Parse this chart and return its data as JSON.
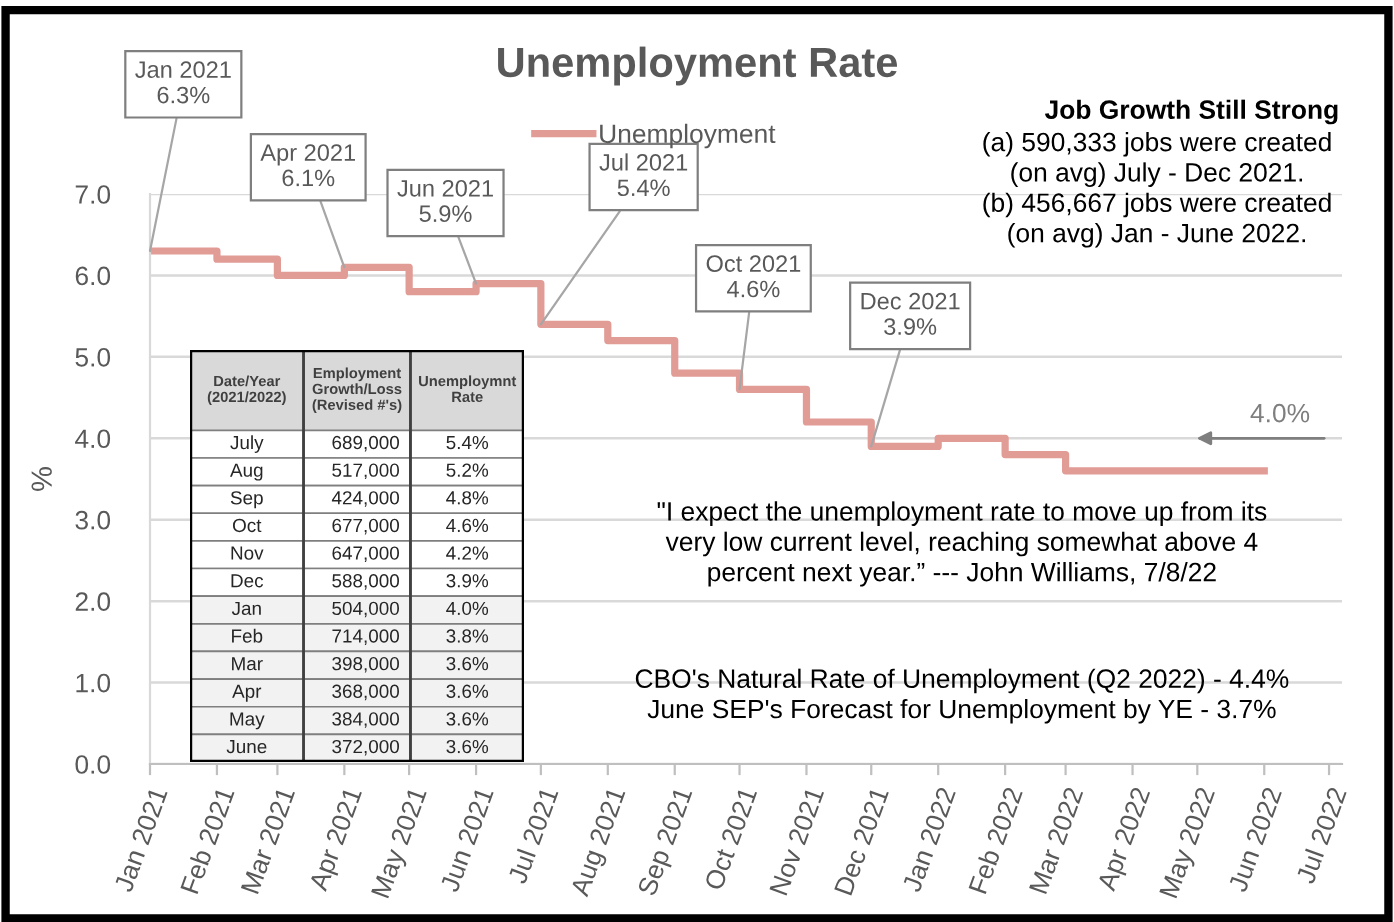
{
  "chart_data": [
    {
      "type": "step",
      "title": "Unemployment Rate",
      "ylabel": "%",
      "x": [
        "2021-01",
        "2021-02",
        "2021-03",
        "2021-04",
        "2021-05",
        "2021-06",
        "2021-07",
        "2021-08",
        "2021-09",
        "2021-10",
        "2021-11",
        "2021-12",
        "2022-01",
        "2022-02",
        "2022-03",
        "2022-04",
        "2022-05",
        "2022-06"
      ],
      "series": [
        {
          "name": "Unemployment",
          "color": "#e29c96",
          "values": [
            6.3,
            6.2,
            6.0,
            6.1,
            5.8,
            5.9,
            5.4,
            5.2,
            4.8,
            4.6,
            4.2,
            3.9,
            4.0,
            3.8,
            3.6,
            3.6,
            3.6,
            3.6
          ]
        }
      ],
      "xlim": [
        "2021-01",
        "2022-07-07"
      ],
      "xticks": [
        {
          "value": "2021-01",
          "label": "Jan 2021"
        },
        {
          "value": "2021-02",
          "label": "Feb 2021"
        },
        {
          "value": "2021-03",
          "label": "Mar 2021"
        },
        {
          "value": "2021-04",
          "label": "Apr 2021"
        },
        {
          "value": "2021-05",
          "label": "May 2021"
        },
        {
          "value": "2021-06",
          "label": "Jun 2021"
        },
        {
          "value": "2021-07",
          "label": "Jul 2021"
        },
        {
          "value": "2021-08",
          "label": "Aug 2021"
        },
        {
          "value": "2021-09",
          "label": "Sep 2021"
        },
        {
          "value": "2021-10",
          "label": "Oct 2021"
        },
        {
          "value": "2021-11",
          "label": "Nov 2021"
        },
        {
          "value": "2021-12",
          "label": "Dec 2021"
        },
        {
          "value": "2022-01",
          "label": "Jan 2022"
        },
        {
          "value": "2022-02",
          "label": "Feb 2022"
        },
        {
          "value": "2022-03",
          "label": "Mar 2022"
        },
        {
          "value": "2022-04",
          "label": "Apr 2022"
        },
        {
          "value": "2022-05",
          "label": "May 2022"
        },
        {
          "value": "2022-06",
          "label": "Jun 2022"
        },
        {
          "value": "2022-07",
          "label": "Jul 2022"
        }
      ],
      "ylim": [
        0,
        7
      ],
      "yticks": [
        {
          "value": 0,
          "label": "0.0"
        },
        {
          "value": 1,
          "label": "1.0"
        },
        {
          "value": 2,
          "label": "2.0"
        },
        {
          "value": 3,
          "label": "3.0"
        },
        {
          "value": 4,
          "label": "4.0"
        },
        {
          "value": 5,
          "label": "5.0"
        },
        {
          "value": 6,
          "label": "6.0"
        },
        {
          "value": 7,
          "label": "7.0"
        }
      ],
      "grid": "y",
      "legend": "top",
      "marker": "none",
      "line_style": "solid",
      "annotations": [
        {
          "text": "Jan 2021\n6.3%",
          "x": "2021-01",
          "y": 6.3
        },
        {
          "text": "Apr 2021\n6.1%",
          "x": "2021-04",
          "y": 6.1
        },
        {
          "text": "Jun 2021\n5.9%",
          "x": "2021-06",
          "y": 5.9
        },
        {
          "text": "Jul 2021\n5.4%",
          "x": "2021-07",
          "y": 5.4
        },
        {
          "text": "Oct 2021\n4.6%",
          "x": "2021-10",
          "y": 4.6
        },
        {
          "text": "Dec 2021\n3.9%",
          "x": "2021-12",
          "y": 3.9
        },
        "4.0%",
        "Job Growth Still Strong",
        "(a) 590,333 jobs were created\n(on avg) July - Dec 2021.\n(b) 456,667 jobs were created\n(on avg) Jan - June 2022.",
        "\"I expect the unemployment rate to move up from its\nvery low current level, reaching somewhat above 4\npercent next year.” --- John Williams, 7/8/22",
        "CBO's Natural Rate of Unemployment (Q2 2022) - 4.4%\nJune SEP's Forecast for Unemployment by YE - 3.7%"
      ]
    },
    {
      "type": "other",
      "xlabel": "Date/Year\n(2021/2022)",
      "categories": [
        "July",
        "Aug",
        "Sep",
        "Oct",
        "Nov",
        "Dec",
        "Jan",
        "Feb",
        "Mar",
        "Apr",
        "May",
        "June"
      ],
      "series": [
        {
          "name": "Employment\nGrowth/Loss\n(Revised #'s)",
          "colors": [
            "#ffffff",
            "#ffffff",
            "#ffffff",
            "#ffffff",
            "#ffffff",
            "#ffffff",
            "#f2f2f2",
            "#f2f2f2",
            "#f2f2f2",
            "#f2f2f2",
            "#f2f2f2",
            "#f2f2f2"
          ],
          "values": [
            689000,
            517000,
            424000,
            677000,
            647000,
            588000,
            504000,
            714000,
            398000,
            368000,
            384000,
            372000
          ],
          "value_labels": [
            "689,000",
            "517,000",
            "424,000",
            "677,000",
            "647,000",
            "588,000",
            "504,000",
            "714,000",
            "398,000",
            "368,000",
            "384,000",
            "372,000"
          ]
        },
        {
          "name": "Unemploymnt\nRate",
          "colors": [
            "#ffffff",
            "#ffffff",
            "#ffffff",
            "#ffffff",
            "#ffffff",
            "#ffffff",
            "#f2f2f2",
            "#f2f2f2",
            "#f2f2f2",
            "#f2f2f2",
            "#f2f2f2",
            "#f2f2f2"
          ],
          "values": [
            5.4,
            5.2,
            4.8,
            4.6,
            4.2,
            3.9,
            4.0,
            3.8,
            3.6,
            3.6,
            3.6,
            3.6
          ],
          "value_labels": [
            "5.4%",
            "5.2%",
            "4.8%",
            "4.6%",
            "4.2%",
            "3.9%",
            "4.0%",
            "3.8%",
            "3.6%",
            "3.6%",
            "3.6%",
            "3.6%"
          ]
        }
      ]
    }
  ]
}
